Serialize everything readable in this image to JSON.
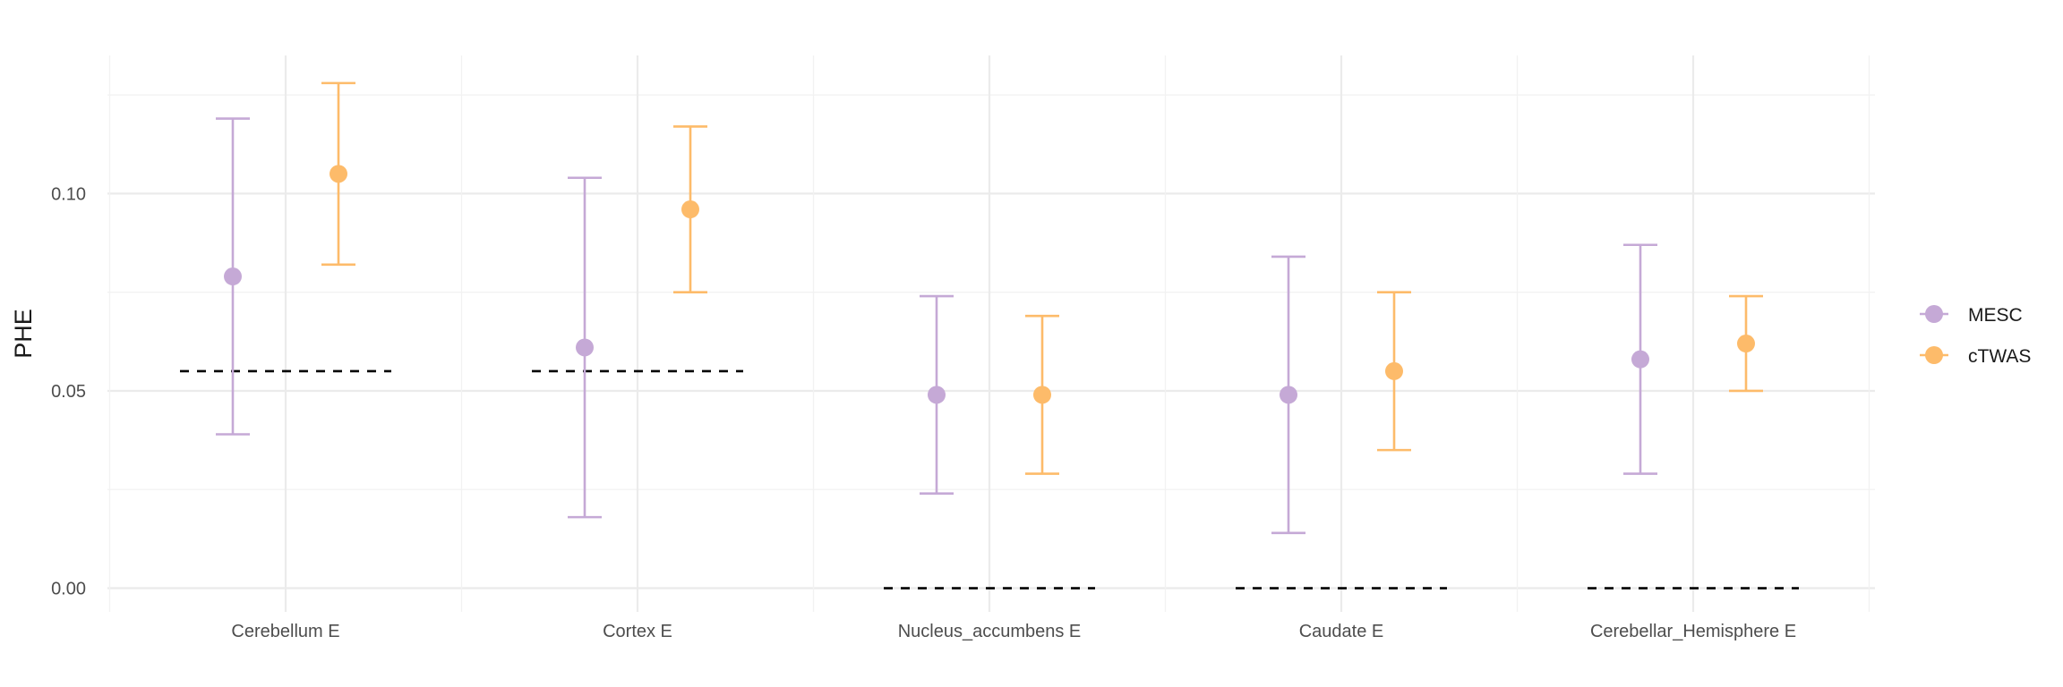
{
  "chart_data": {
    "type": "errorbar-dot",
    "title": "",
    "xlabel": "",
    "ylabel": "PHE",
    "ylim": [
      -0.006,
      0.135
    ],
    "y_ticks": [
      0.0,
      0.05,
      0.1
    ],
    "y_tick_labels": [
      "0.00",
      "0.05",
      "0.10"
    ],
    "grid": true,
    "legend_position": "right",
    "categories": [
      "Cerebellum E",
      "Cortex E",
      "Nucleus_accumbens E",
      "Caudate E",
      "Cerebellar_Hemisphere E"
    ],
    "series": [
      {
        "name": "MESC",
        "color": "#c5a9d6",
        "values": [
          0.079,
          0.061,
          0.049,
          0.049,
          0.058
        ],
        "lower": [
          0.039,
          0.018,
          0.024,
          0.014,
          0.029
        ],
        "upper": [
          0.119,
          0.104,
          0.074,
          0.084,
          0.087
        ]
      },
      {
        "name": "cTWAS",
        "color": "#fdbb6a",
        "values": [
          0.105,
          0.096,
          0.049,
          0.055,
          0.062
        ],
        "lower": [
          0.082,
          0.075,
          0.029,
          0.035,
          0.05
        ],
        "upper": [
          0.128,
          0.117,
          0.069,
          0.075,
          0.074
        ]
      }
    ],
    "reference_lines": [
      0.055,
      0.055,
      0.0,
      0.0,
      0.0
    ]
  }
}
